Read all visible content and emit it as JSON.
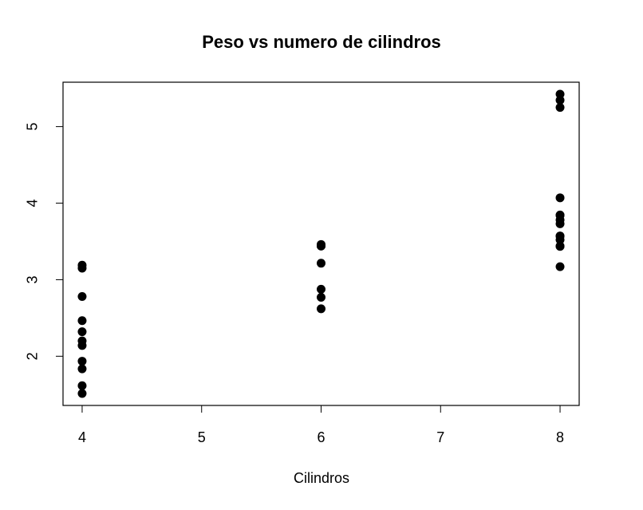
{
  "chart_data": {
    "type": "scatter",
    "title": "Peso vs numero de cilindros",
    "x_label": "Cilindros",
    "x": [
      6,
      6,
      4,
      6,
      8,
      6,
      8,
      4,
      4,
      6,
      6,
      8,
      8,
      8,
      8,
      8,
      8,
      4,
      4,
      4,
      4,
      8,
      8,
      8,
      8,
      4,
      4,
      4,
      8,
      6,
      8,
      4
    ],
    "y": [
      2.62,
      2.875,
      2.32,
      3.215,
      3.44,
      3.46,
      3.57,
      3.19,
      3.15,
      3.44,
      3.44,
      4.07,
      3.73,
      3.78,
      5.25,
      5.424,
      5.345,
      2.2,
      1.615,
      1.835,
      2.465,
      3.52,
      3.435,
      3.84,
      3.845,
      1.935,
      2.14,
      1.513,
      3.17,
      2.77,
      3.57,
      2.78
    ],
    "color": "#000000",
    "xlim": [
      3.84,
      8.16
    ],
    "ylim": [
      1.357,
      5.58
    ],
    "xticks": [
      4,
      5,
      6,
      7,
      8
    ],
    "yticks": [
      2,
      3,
      4,
      5
    ]
  }
}
